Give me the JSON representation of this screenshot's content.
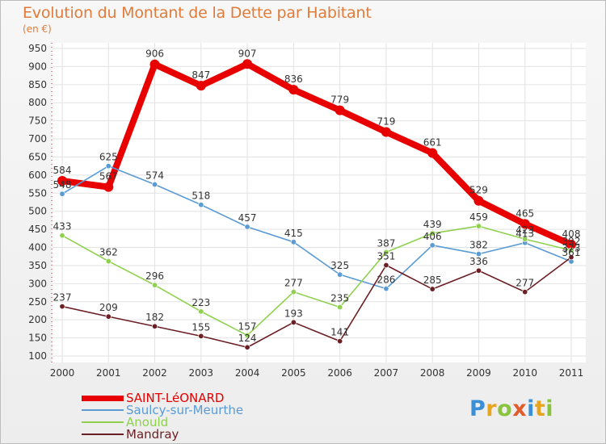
{
  "header": {
    "title": "Evolution du Montant de la Dette par Habitant",
    "unit": "(en €)"
  },
  "logo": {
    "letters": [
      "P",
      "r",
      "o",
      "x",
      "i",
      "t",
      "i"
    ],
    "colors": [
      "#3b8fd6",
      "#e6a51c",
      "#8ac43f",
      "#e25b2c",
      "#3b8fd6",
      "#e6a51c",
      "#8ac43f"
    ]
  },
  "chart_data": {
    "type": "line",
    "title": "Evolution du Montant de la Dette par Habitant",
    "ylabel": "(en €)",
    "x": [
      "2000",
      "2001",
      "2002",
      "2003",
      "2004",
      "2005",
      "2006",
      "2007",
      "2008",
      "2009",
      "2010",
      "2011"
    ],
    "ylim": [
      100,
      950
    ],
    "yticks": [
      100,
      150,
      200,
      250,
      300,
      350,
      400,
      450,
      500,
      550,
      600,
      650,
      700,
      750,
      800,
      850,
      900,
      950
    ],
    "grid": true,
    "legend_position": "bottom-left",
    "series": [
      {
        "name": "SAINT-LéONARD",
        "color": "#e80000",
        "values": [
          584,
          567,
          906,
          847,
          907,
          836,
          779,
          719,
          661,
          529,
          465,
          408
        ]
      },
      {
        "name": "Saulcy-sur-Meurthe",
        "color": "#5a9bd4",
        "values": [
          548,
          625,
          574,
          518,
          457,
          415,
          325,
          286,
          406,
          382,
          413,
          361
        ]
      },
      {
        "name": "Anould",
        "color": "#8fd14f",
        "values": [
          433,
          362,
          296,
          223,
          157,
          277,
          235,
          387,
          439,
          459,
          423,
          392
        ]
      },
      {
        "name": "Mandray",
        "color": "#6b1f24",
        "values": [
          237,
          209,
          182,
          155,
          124,
          193,
          141,
          351,
          285,
          336,
          277,
          373
        ]
      }
    ],
    "data_labels": [
      [
        "584",
        "567",
        "906",
        "847",
        "907",
        "836",
        "779",
        "719",
        "661",
        "529",
        "465",
        "408"
      ],
      [
        "548",
        "625",
        "574",
        "518",
        "457",
        "415",
        "325",
        "286",
        "406",
        "382",
        "413",
        "361"
      ],
      [
        "433",
        "362",
        "296",
        "223",
        "157",
        "277",
        "235",
        "387",
        "439",
        "459",
        "423",
        "392"
      ],
      [
        "237",
        "209",
        "182",
        "155",
        "124",
        "193",
        "141",
        "351",
        "285",
        "336",
        "277",
        "373"
      ]
    ]
  }
}
